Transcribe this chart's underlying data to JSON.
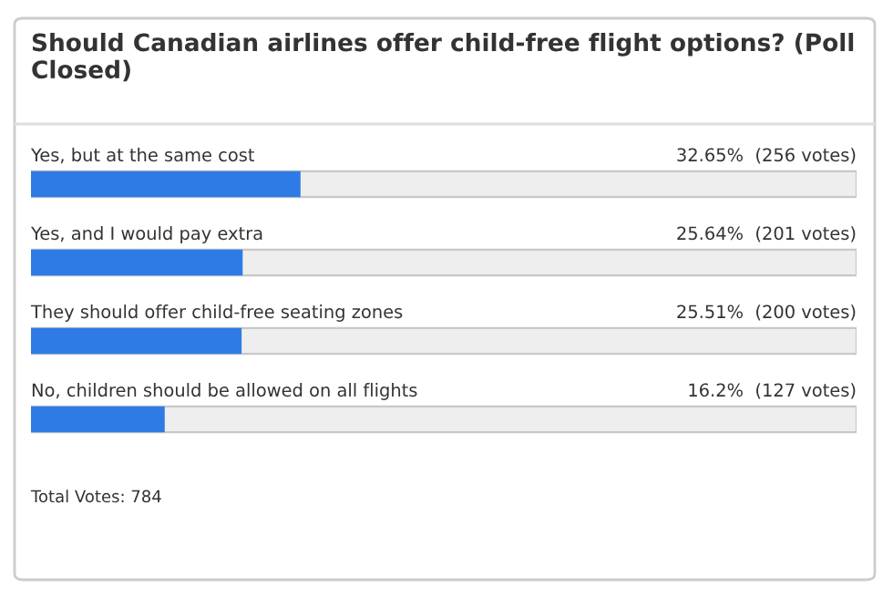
{
  "chart_data": {
    "type": "bar",
    "orientation": "horizontal",
    "title": "Should Canadian airlines offer child-free flight options? (Poll Closed)",
    "categories": [
      "Yes, but at the same cost",
      "Yes, and I would pay extra",
      "They should offer child-free seating zones",
      "No, children should be allowed on all flights"
    ],
    "values": [
      32.65,
      25.64,
      25.51,
      16.2
    ],
    "value_labels": [
      "32.65%  (256 votes)",
      "25.64%  (201 votes)",
      "25.51%  (200 votes)",
      "16.2%  (127 votes)"
    ],
    "color": "#2f7be5",
    "xlim": [
      0,
      100
    ],
    "tick_labels": false,
    "annotations": [
      "Total Votes: 784"
    ]
  }
}
